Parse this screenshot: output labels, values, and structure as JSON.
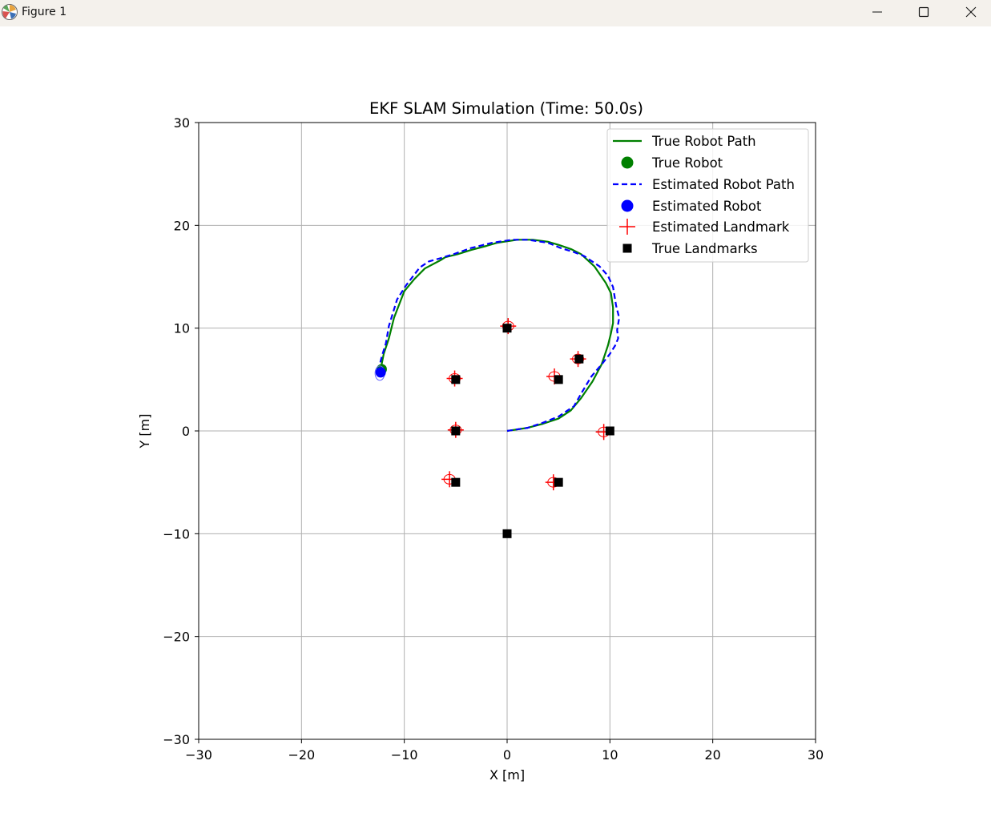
{
  "window": {
    "title": "Figure 1",
    "icons": {
      "app": "matplotlib-icon",
      "minimize": "minimize-icon",
      "maximize": "maximize-icon",
      "close": "close-icon"
    }
  },
  "chart_data": {
    "type": "scatter",
    "title": "EKF SLAM Simulation (Time: 50.0s)",
    "xlabel": "X [m]",
    "ylabel": "Y [m]",
    "xlim": [
      -30,
      30
    ],
    "ylim": [
      -30,
      30
    ],
    "xticks": [
      -30,
      -20,
      -10,
      0,
      10,
      20,
      30
    ],
    "yticks": [
      -30,
      -20,
      -10,
      0,
      10,
      20,
      30
    ],
    "xtick_labels": [
      "−30",
      "−20",
      "−10",
      "0",
      "10",
      "20",
      "30"
    ],
    "ytick_labels": [
      "−30",
      "−20",
      "−10",
      "0",
      "10",
      "20",
      "30"
    ],
    "grid": true,
    "legend_position": "top-right",
    "colors": {
      "true_path": "#008000",
      "estimated_path": "#0000ff",
      "landmark_estimate": "#ff0000",
      "landmark_true": "#000000"
    },
    "series": [
      {
        "name": "True Robot Path",
        "kind": "line",
        "x": [
          0,
          2,
          3.5,
          5,
          6.2,
          7.2,
          8.3,
          9.2,
          9.8,
          10.1,
          10.3,
          10.3,
          10.1,
          9.6,
          8.5,
          7.2,
          6.2,
          5,
          4,
          2.5,
          1,
          0.3,
          -1,
          -2,
          -3.5,
          -4.8,
          -6,
          -6.5,
          -8,
          -9,
          -10,
          -11,
          -11.5,
          -12,
          -12.2,
          -12.3
        ],
        "y": [
          0,
          0.3,
          0.7,
          1.2,
          2.0,
          3.2,
          4.8,
          6.5,
          8.3,
          9.5,
          10.5,
          12,
          13.4,
          14.4,
          16.0,
          17.2,
          17.7,
          18.1,
          18.4,
          18.6,
          18.6,
          18.5,
          18.3,
          18.0,
          17.6,
          17.2,
          16.9,
          16.6,
          15.8,
          14.8,
          13.6,
          11,
          9.0,
          7.5,
          6.5,
          6.0
        ]
      },
      {
        "name": "True Robot",
        "kind": "marker",
        "x": [
          -12.2
        ],
        "y": [
          6.0
        ]
      },
      {
        "name": "Estimated Robot Path",
        "kind": "line",
        "x": [
          0,
          2,
          3.5,
          5,
          6.5,
          7.3,
          8.2,
          9.3,
          10.0,
          10.5,
          10.8,
          10.7,
          10.9,
          10.6,
          10.3,
          9.8,
          9.0,
          7.5,
          6.5,
          5.2,
          4,
          2,
          0.5,
          -1.5,
          -3.5,
          -5.2,
          -6.5,
          -7.6,
          -8.5,
          -9.8,
          -10.7,
          -11.5,
          -11.8,
          -12.2,
          -12.4,
          -12.5
        ],
        "y": [
          0,
          0.3,
          0.8,
          1.4,
          2.4,
          3.8,
          5.3,
          6.6,
          7.5,
          8.3,
          9.0,
          9.8,
          11,
          12.2,
          14.0,
          15.1,
          16.0,
          17.0,
          17.4,
          17.8,
          18.3,
          18.6,
          18.6,
          18.3,
          17.8,
          17.2,
          16.8,
          16.5,
          15.9,
          14.2,
          12.8,
          10.2,
          8.5,
          7.2,
          6.4,
          5.6
        ]
      },
      {
        "name": "Estimated Robot",
        "kind": "marker",
        "x": [
          -12.3
        ],
        "y": [
          5.7
        ]
      },
      {
        "name": "Estimated Landmark",
        "kind": "marker",
        "x": [
          0.1,
          -5.1,
          6.9,
          4.6,
          -5.0,
          9.4,
          -5.6,
          4.5
        ],
        "y": [
          10.2,
          5.1,
          7.0,
          5.3,
          0.1,
          -0.1,
          -4.7,
          -5.0
        ]
      },
      {
        "name": "True Landmarks",
        "kind": "marker",
        "x": [
          0,
          -5,
          7,
          5,
          -5,
          10,
          -5,
          5,
          0
        ],
        "y": [
          10,
          5,
          7,
          5,
          0,
          0,
          -5,
          -5,
          -10
        ]
      }
    ]
  }
}
